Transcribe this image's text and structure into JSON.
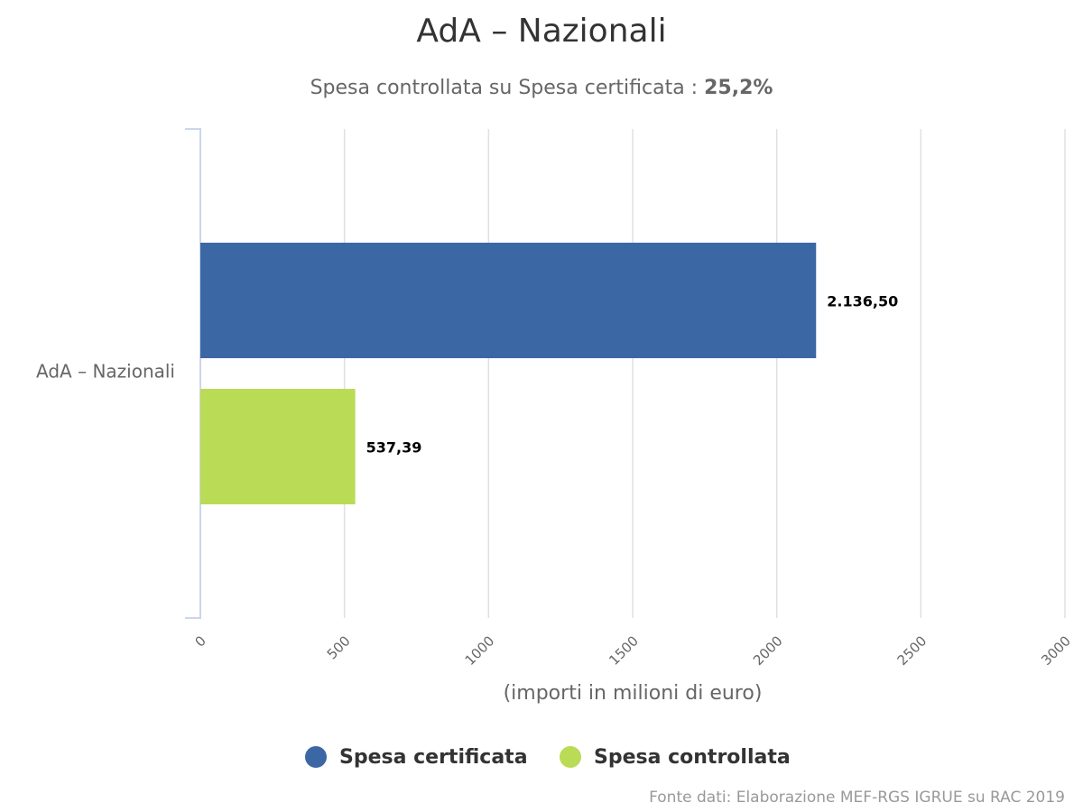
{
  "chart_data": {
    "type": "bar",
    "orientation": "horizontal",
    "title": "AdA – Nazionali",
    "subtitle": "Spesa controllata su Spesa certificata :",
    "subtitle_highlight": "25,2%",
    "categories": [
      "AdA – Nazionali"
    ],
    "series": [
      {
        "name": "Spesa certificata",
        "color": "#3c67a5",
        "values": [
          2136.5
        ],
        "value_labels": [
          "2.136,50"
        ]
      },
      {
        "name": "Spesa controllata",
        "color": "#badb55",
        "values": [
          537.39
        ],
        "value_labels": [
          "537,39"
        ]
      }
    ],
    "xlim": [
      0,
      3000
    ],
    "xticks": [
      0,
      500,
      1000,
      1500,
      2000,
      2500,
      3000
    ],
    "x_label": "(importi in milioni di euro)",
    "grid": true,
    "legend": "bottom",
    "source": "Fonte dati: Elaborazione MEF-RGS IGRUE su RAC 2019"
  }
}
